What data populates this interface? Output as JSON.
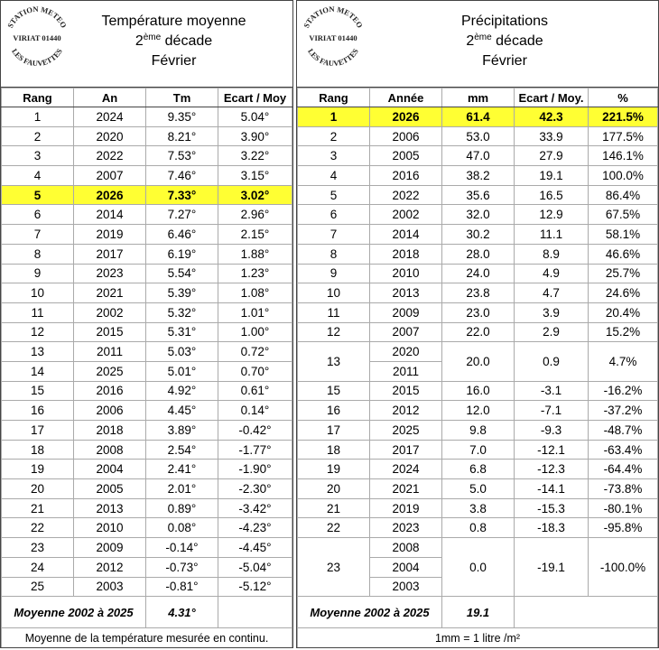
{
  "left": {
    "stamp": {
      "top": "STATION METEO",
      "middle": "VIRIAT 01440",
      "bottom": "LES FAUVETTES"
    },
    "title": "Température moyenne",
    "subtitle": {
      "number": "2",
      "sup": "ème",
      "text": "décade"
    },
    "month": "Février",
    "headers": [
      "Rang",
      "An",
      "Tm",
      "Ecart / Moy"
    ],
    "highlight_row": 4,
    "rows": [
      [
        "1",
        "2024",
        "9.35°",
        "5.04°"
      ],
      [
        "2",
        "2020",
        "8.21°",
        "3.90°"
      ],
      [
        "3",
        "2022",
        "7.53°",
        "3.22°"
      ],
      [
        "4",
        "2007",
        "7.46°",
        "3.15°"
      ],
      [
        "5",
        "2026",
        "7.33°",
        "3.02°"
      ],
      [
        "6",
        "2014",
        "7.27°",
        "2.96°"
      ],
      [
        "7",
        "2019",
        "6.46°",
        "2.15°"
      ],
      [
        "8",
        "2017",
        "6.19°",
        "1.88°"
      ],
      [
        "9",
        "2023",
        "5.54°",
        "1.23°"
      ],
      [
        "10",
        "2021",
        "5.39°",
        "1.08°"
      ],
      [
        "11",
        "2002",
        "5.32°",
        "1.01°"
      ],
      [
        "12",
        "2015",
        "5.31°",
        "1.00°"
      ],
      [
        "13",
        "2011",
        "5.03°",
        "0.72°"
      ],
      [
        "14",
        "2025",
        "5.01°",
        "0.70°"
      ],
      [
        "15",
        "2016",
        "4.92°",
        "0.61°"
      ],
      [
        "16",
        "2006",
        "4.45°",
        "0.14°"
      ],
      [
        "17",
        "2018",
        "3.89°",
        "-0.42°"
      ],
      [
        "18",
        "2008",
        "2.54°",
        "-1.77°"
      ],
      [
        "19",
        "2004",
        "2.41°",
        "-1.90°"
      ],
      [
        "20",
        "2005",
        "2.01°",
        "-2.30°"
      ],
      [
        "21",
        "2013",
        "0.89°",
        "-3.42°"
      ],
      [
        "22",
        "2010",
        "0.08°",
        "-4.23°"
      ],
      [
        "23",
        "2009",
        "-0.14°",
        "-4.45°"
      ],
      [
        "24",
        "2012",
        "-0.73°",
        "-5.04°"
      ],
      [
        "25",
        "2003",
        "-0.81°",
        "-5.12°"
      ]
    ],
    "footer": {
      "label": "Moyenne 2002 à 2025",
      "value": "4.31°"
    },
    "note": "Moyenne de la température mesurée en continu."
  },
  "right": {
    "stamp": {
      "top": "STATION METEO",
      "middle": "VIRIAT 01440",
      "bottom": "LES FAUVETTES"
    },
    "title": "Précipitations",
    "subtitle": {
      "number": "2",
      "sup": "ème",
      "text": "décade"
    },
    "month": "Février",
    "headers": [
      "Rang",
      "Année",
      "mm",
      "Ecart / Moy.",
      "%"
    ],
    "highlight_row": 0,
    "rows": [
      {
        "rank": "1",
        "years": [
          "2026"
        ],
        "mm": "61.4",
        "ecart": "42.3",
        "pct": "221.5%"
      },
      {
        "rank": "2",
        "years": [
          "2006"
        ],
        "mm": "53.0",
        "ecart": "33.9",
        "pct": "177.5%"
      },
      {
        "rank": "3",
        "years": [
          "2005"
        ],
        "mm": "47.0",
        "ecart": "27.9",
        "pct": "146.1%"
      },
      {
        "rank": "4",
        "years": [
          "2016"
        ],
        "mm": "38.2",
        "ecart": "19.1",
        "pct": "100.0%"
      },
      {
        "rank": "5",
        "years": [
          "2022"
        ],
        "mm": "35.6",
        "ecart": "16.5",
        "pct": "86.4%"
      },
      {
        "rank": "6",
        "years": [
          "2002"
        ],
        "mm": "32.0",
        "ecart": "12.9",
        "pct": "67.5%"
      },
      {
        "rank": "7",
        "years": [
          "2014"
        ],
        "mm": "30.2",
        "ecart": "11.1",
        "pct": "58.1%"
      },
      {
        "rank": "8",
        "years": [
          "2018"
        ],
        "mm": "28.0",
        "ecart": "8.9",
        "pct": "46.6%"
      },
      {
        "rank": "9",
        "years": [
          "2010"
        ],
        "mm": "24.0",
        "ecart": "4.9",
        "pct": "25.7%"
      },
      {
        "rank": "10",
        "years": [
          "2013"
        ],
        "mm": "23.8",
        "ecart": "4.7",
        "pct": "24.6%"
      },
      {
        "rank": "11",
        "years": [
          "2009"
        ],
        "mm": "23.0",
        "ecart": "3.9",
        "pct": "20.4%"
      },
      {
        "rank": "12",
        "years": [
          "2007"
        ],
        "mm": "22.0",
        "ecart": "2.9",
        "pct": "15.2%"
      },
      {
        "rank": "13",
        "years": [
          "2020",
          "2011"
        ],
        "mm": "20.0",
        "ecart": "0.9",
        "pct": "4.7%"
      },
      {
        "rank": "15",
        "years": [
          "2015"
        ],
        "mm": "16.0",
        "ecart": "-3.1",
        "pct": "-16.2%"
      },
      {
        "rank": "16",
        "years": [
          "2012"
        ],
        "mm": "12.0",
        "ecart": "-7.1",
        "pct": "-37.2%"
      },
      {
        "rank": "17",
        "years": [
          "2025"
        ],
        "mm": "9.8",
        "ecart": "-9.3",
        "pct": "-48.7%"
      },
      {
        "rank": "18",
        "years": [
          "2017"
        ],
        "mm": "7.0",
        "ecart": "-12.1",
        "pct": "-63.4%"
      },
      {
        "rank": "19",
        "years": [
          "2024"
        ],
        "mm": "6.8",
        "ecart": "-12.3",
        "pct": "-64.4%"
      },
      {
        "rank": "20",
        "years": [
          "2021"
        ],
        "mm": "5.0",
        "ecart": "-14.1",
        "pct": "-73.8%"
      },
      {
        "rank": "21",
        "years": [
          "2019"
        ],
        "mm": "3.8",
        "ecart": "-15.3",
        "pct": "-80.1%"
      },
      {
        "rank": "22",
        "years": [
          "2023"
        ],
        "mm": "0.8",
        "ecart": "-18.3",
        "pct": "-95.8%"
      },
      {
        "rank": "23",
        "years": [
          "2008",
          "2004",
          "2003"
        ],
        "mm": "0.0",
        "ecart": "-19.1",
        "pct": "-100.0%"
      }
    ],
    "footer": {
      "label": "Moyenne 2002 à 2025",
      "value": "19.1"
    },
    "note": "1mm = 1 litre /m²"
  }
}
